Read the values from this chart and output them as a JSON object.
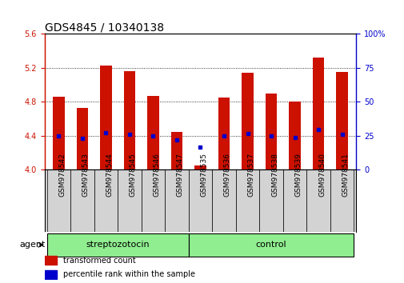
{
  "title": "GDS4845 / 10340138",
  "samples": [
    "GSM978542",
    "GSM978543",
    "GSM978544",
    "GSM978545",
    "GSM978546",
    "GSM978547",
    "GSM978535",
    "GSM978536",
    "GSM978537",
    "GSM978538",
    "GSM978539",
    "GSM978540",
    "GSM978541"
  ],
  "transformed_count": [
    4.86,
    4.73,
    5.23,
    5.16,
    4.87,
    4.45,
    4.05,
    4.85,
    5.14,
    4.9,
    4.8,
    5.32,
    5.15
  ],
  "percentile_rank_left": [
    4.4,
    4.37,
    4.44,
    4.42,
    4.4,
    4.35,
    4.27,
    4.4,
    4.43,
    4.4,
    4.38,
    4.47,
    4.42
  ],
  "ylim_left": [
    4.0,
    5.6
  ],
  "ylim_right": [
    0,
    100
  ],
  "yticks_left": [
    4.0,
    4.4,
    4.8,
    5.2,
    5.6
  ],
  "yticks_right": [
    0,
    25,
    50,
    75,
    100
  ],
  "bar_color": "#cc1100",
  "dot_color": "#0000cc",
  "bar_width": 0.5,
  "group_color": "#90ee90",
  "group_border_color": "#000000",
  "groups": [
    {
      "label": "streptozotocin",
      "start": 0,
      "end": 5
    },
    {
      "label": "control",
      "start": 6,
      "end": 12
    }
  ],
  "agent_label": "agent",
  "legend": [
    {
      "label": "transformed count",
      "color": "#cc1100"
    },
    {
      "label": "percentile rank within the sample",
      "color": "#0000cc"
    }
  ],
  "title_fontsize": 10,
  "tick_fontsize": 7,
  "label_fontsize": 8,
  "xtick_bg_color": "#d3d3d3"
}
